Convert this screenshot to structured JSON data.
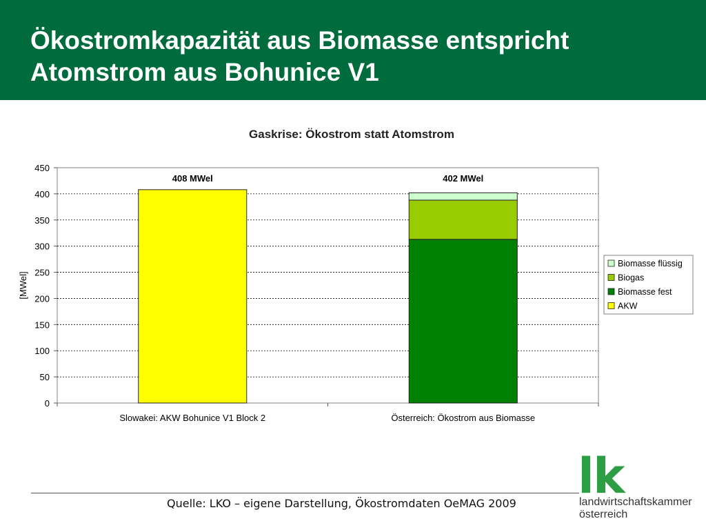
{
  "header": {
    "title_line1": "Ökostromkapazität aus Biomasse entspricht",
    "title_line2": "Atomstrom aus Bohunice V1"
  },
  "chart_data": {
    "type": "bar",
    "stacked": true,
    "title": "Gaskrise: Ökostrom statt Atomstrom",
    "ylabel": "[MWel]",
    "xlabel": "",
    "ylim": [
      0,
      450
    ],
    "yticks": [
      0,
      50,
      100,
      150,
      200,
      250,
      300,
      350,
      400,
      450
    ],
    "grid": true,
    "legend_position": "right",
    "categories": [
      "Slowakei: AKW Bohunice V1 Block 2",
      "Österreich: Ökostrom aus Biomasse"
    ],
    "totals_labels": [
      "408 MWel",
      "402 MWel"
    ],
    "series": [
      {
        "name": "AKW",
        "values": [
          408,
          0
        ],
        "color": "#ffff00"
      },
      {
        "name": "Biomasse fest",
        "values": [
          0,
          313
        ],
        "color": "#008000"
      },
      {
        "name": "Biogas",
        "values": [
          0,
          75
        ],
        "color": "#99cc00"
      },
      {
        "name": "Biomasse flüssig",
        "values": [
          0,
          14
        ],
        "color": "#ccffcc"
      }
    ],
    "legend_order": [
      "Biomasse flüssig",
      "Biogas",
      "Biomasse fest",
      "AKW"
    ]
  },
  "footer": {
    "source": "Quelle: LKO – eigene Darstellung, Ökostromdaten OeMAG 2009"
  },
  "logo": {
    "mark": "lk",
    "line1": "landwirtschaftskammer",
    "line2": "österreich"
  },
  "colors": {
    "header_bg": "#006b3c",
    "plot_border": "#808080",
    "logo_green": "#2e9e44"
  }
}
